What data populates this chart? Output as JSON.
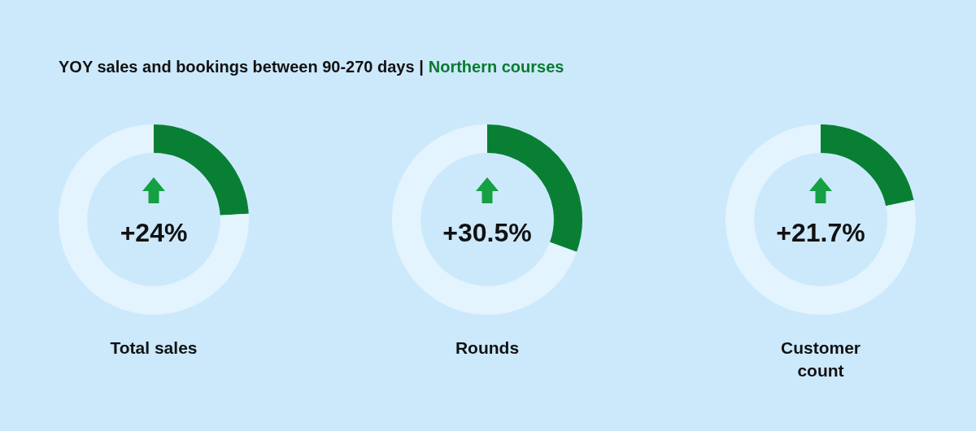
{
  "chart_data": [
    {
      "type": "other",
      "title": "YOY sales and bookings between 90-270 days |",
      "subtitle": "Northern courses"
    },
    {
      "type": "donut",
      "title": "Total sales",
      "categories": [
        null,
        null
      ],
      "values": [
        24,
        76
      ],
      "colors": [
        "#097f33",
        "#e3f4fe"
      ],
      "annotations": [
        "+24%"
      ]
    },
    {
      "type": "donut",
      "title": "Rounds",
      "categories": [
        null,
        null
      ],
      "values": [
        30.5,
        69.5
      ],
      "colors": [
        "#097f33",
        "#e3f4fe"
      ],
      "annotations": [
        "+30.5%"
      ]
    },
    {
      "type": "donut",
      "title": "Customer count",
      "categories": [
        null,
        null
      ],
      "values": [
        21.7,
        78.3
      ],
      "colors": [
        "#097f33",
        "#e3f4fe"
      ],
      "annotations": [
        "+21.7%"
      ]
    }
  ]
}
